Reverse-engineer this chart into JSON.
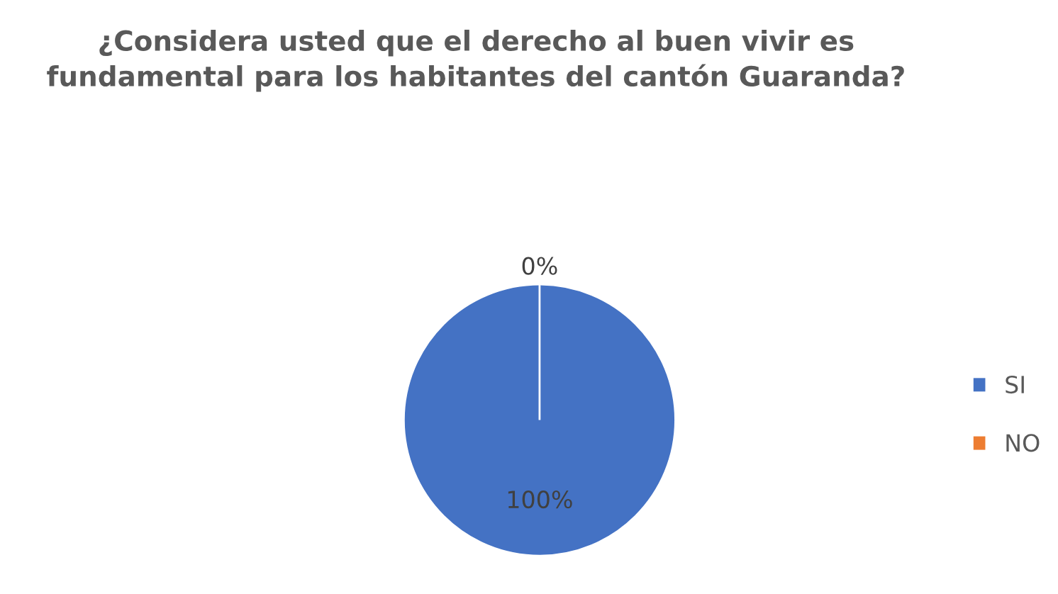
{
  "chart_data": {
    "type": "pie",
    "title": "¿Considera usted que el derecho al buen vivir es fundamental para los habitantes del cantón Guaranda?",
    "categories": [
      "SI",
      "NO"
    ],
    "values": [
      100,
      0
    ],
    "colors": [
      "#4472c4",
      "#ed7d31"
    ],
    "value_labels": [
      "100%",
      "0%"
    ],
    "legend": "right"
  }
}
